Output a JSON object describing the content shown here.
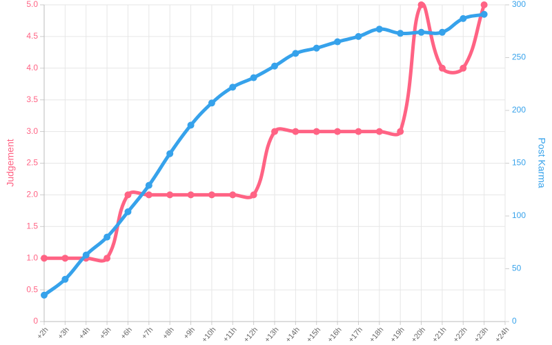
{
  "chart_data": {
    "type": "line",
    "categories": [
      "+2h",
      "+3h",
      "+4h",
      "+5h",
      "+6h",
      "+7h",
      "+8h",
      "+9h",
      "+10h",
      "+11h",
      "+12h",
      "+13h",
      "+14h",
      "+15h",
      "+16h",
      "+17h",
      "+18h",
      "+19h",
      "+20h",
      "+21h",
      "+22h",
      "+23h",
      "+24h"
    ],
    "series": [
      {
        "name": "Judgement",
        "color": "#ff6384",
        "axis": "y",
        "values": [
          1,
          1,
          1,
          1,
          2,
          2,
          2,
          2,
          2,
          2,
          2,
          3,
          3,
          3,
          3,
          3,
          3,
          3,
          5,
          4,
          4,
          5,
          null
        ]
      },
      {
        "name": "Post Karma",
        "color": "#36a2eb",
        "axis": "y2",
        "values": [
          25,
          40,
          63,
          80,
          104,
          129,
          159,
          186,
          207,
          222,
          231,
          242,
          254,
          259,
          265,
          270,
          277,
          273,
          274,
          274,
          287,
          291,
          null
        ]
      }
    ],
    "ylabel": "Judgement",
    "y2label": "Post Karma",
    "ylim": [
      0,
      5
    ],
    "yticks": [
      0,
      0.5,
      {
        "value": 1,
        "label": "1.0"
      },
      1.5,
      {
        "value": 2,
        "label": "2.0"
      },
      2.5,
      {
        "value": 3,
        "label": "3.0"
      },
      3.5,
      {
        "value": 4,
        "label": "4.0"
      },
      4.5,
      {
        "value": 5,
        "label": "5.0"
      }
    ],
    "y2lim": [
      0,
      300
    ],
    "y2ticks": [
      0,
      50,
      100,
      150,
      200,
      250,
      300
    ],
    "grid": true
  }
}
